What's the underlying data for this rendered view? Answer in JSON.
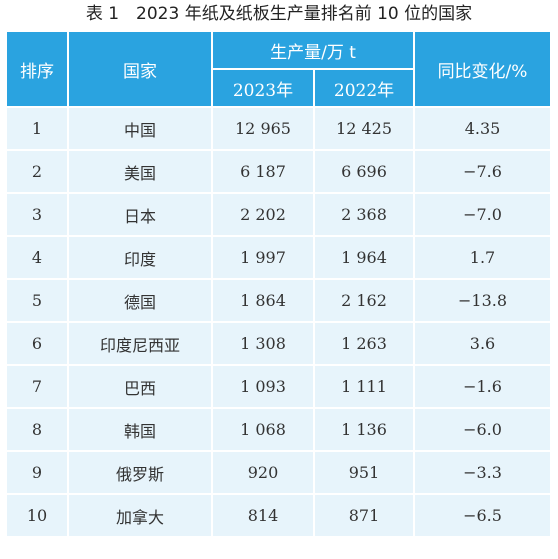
{
  "caption": "表 1　2023 年纸及纸板生产量排名前 10 位的国家",
  "header": {
    "rank": "排序",
    "country": "国家",
    "production": "生产量/万 t",
    "year_2023": "2023年",
    "year_2022": "2022年",
    "change": "同比变化/%"
  },
  "rows": [
    {
      "rank": "1",
      "country": "中国",
      "y2023": "12 965",
      "y2022": "12 425",
      "change": "4.35"
    },
    {
      "rank": "2",
      "country": "美国",
      "y2023": "6 187",
      "y2022": "6 696",
      "change": "−7.6"
    },
    {
      "rank": "3",
      "country": "日本",
      "y2023": "2 202",
      "y2022": "2 368",
      "change": "−7.0"
    },
    {
      "rank": "4",
      "country": "印度",
      "y2023": "1 997",
      "y2022": "1 964",
      "change": "1.7"
    },
    {
      "rank": "5",
      "country": "德国",
      "y2023": "1 864",
      "y2022": "2 162",
      "change": "−13.8"
    },
    {
      "rank": "6",
      "country": "印度尼西亚",
      "y2023": "1 308",
      "y2022": "1 263",
      "change": "3.6"
    },
    {
      "rank": "7",
      "country": "巴西",
      "y2023": "1 093",
      "y2022": "1 111",
      "change": "−1.6"
    },
    {
      "rank": "8",
      "country": "韩国",
      "y2023": "1 068",
      "y2022": "1 136",
      "change": "−6.0"
    },
    {
      "rank": "9",
      "country": "俄罗斯",
      "y2023": "920",
      "y2022": "951",
      "change": "−3.3"
    },
    {
      "rank": "10",
      "country": "加拿大",
      "y2023": "814",
      "y2022": "871",
      "change": "−6.5"
    }
  ],
  "colors": {
    "header_bg": "#2aa3e0",
    "row_bg": "#e7f4fb"
  }
}
